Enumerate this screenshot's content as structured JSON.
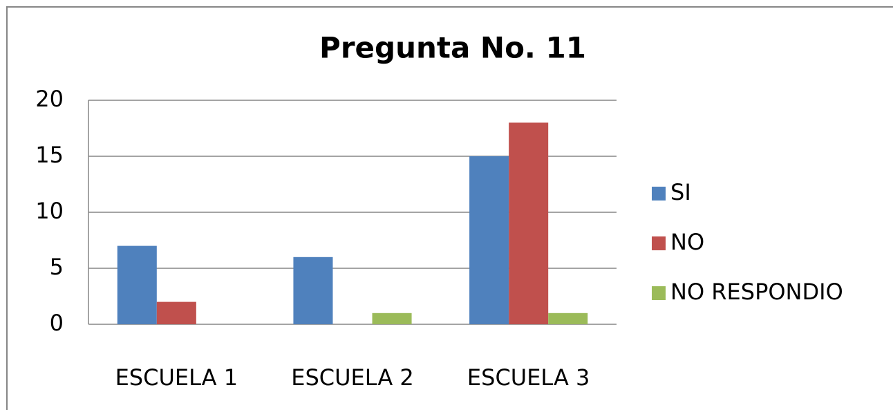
{
  "chart_data": {
    "type": "bar",
    "title": "Pregunta No. 11",
    "categories": [
      "ESCUELA 1",
      "ESCUELA 2",
      "ESCUELA 3"
    ],
    "series": [
      {
        "name": "SI",
        "color": "#4f81bd",
        "values": [
          7,
          6,
          15
        ]
      },
      {
        "name": "NO",
        "color": "#c0504d",
        "values": [
          2,
          0,
          18
        ]
      },
      {
        "name": "NO RESPONDIO",
        "color": "#9bbb59",
        "values": [
          0,
          1,
          1
        ]
      }
    ],
    "ylim": [
      0,
      20
    ],
    "yticks": [
      0,
      5,
      10,
      15,
      20
    ],
    "grid": true,
    "legend": "right"
  }
}
